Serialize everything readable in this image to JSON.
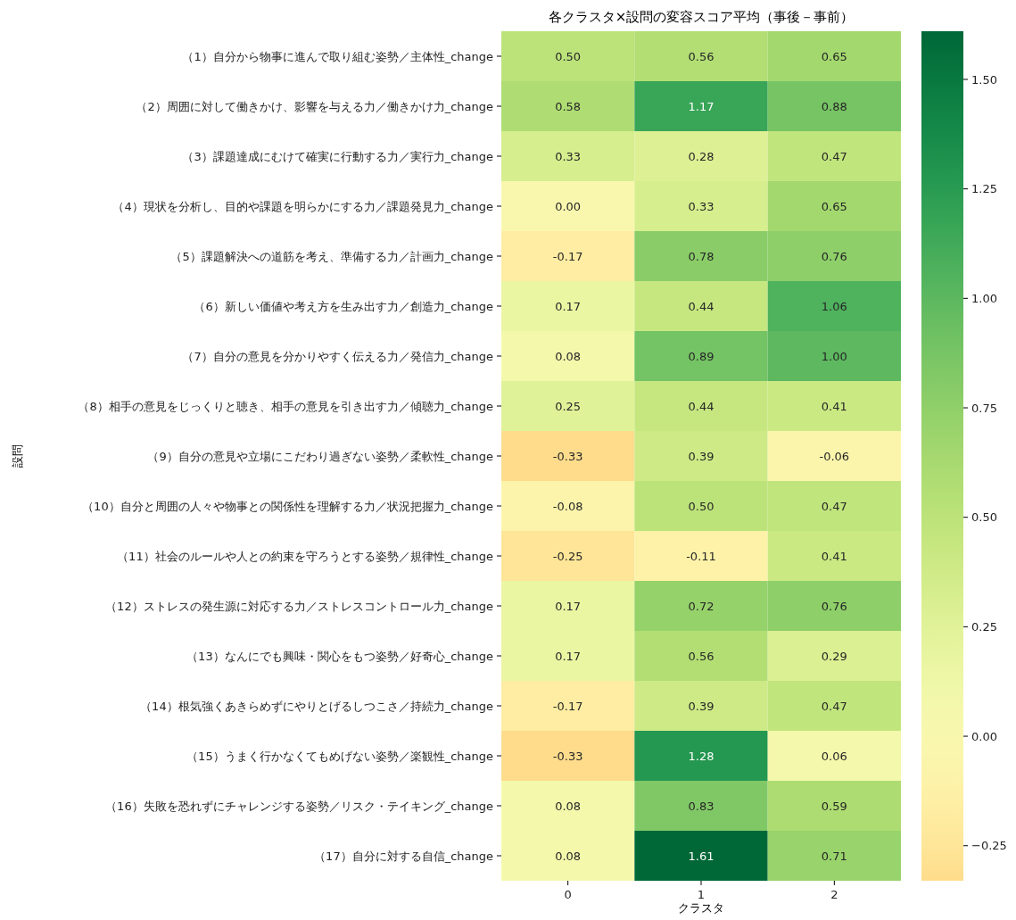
{
  "chart_data": {
    "type": "heatmap",
    "title": "各クラスタ×設問の変容スコア平均（事後－事前）",
    "xlabel": "クラスタ",
    "ylabel": "設問",
    "categories": [
      "0",
      "1",
      "2"
    ],
    "y_categories": [
      "（1）自分から物事に進んで取り組む姿勢／主体性_change",
      "（2）周囲に対して働きかけ、影響を与える力／働きかけ力_change",
      "（3）課題達成にむけて確実に行動する力／実行力_change",
      "（4）現状を分析し、目的や課題を明らかにする力／課題発見力_change",
      "（5）課題解決への道筋を考え、準備する力／計画力_change",
      "（6）新しい価値や考え方を生み出す力／創造力_change",
      "（7）自分の意見を分かりやすく伝える力／発信力_change",
      "（8）相手の意見をじっくりと聴き、相手の意見を引き出す力／傾聴力_change",
      "（9）自分の意見や立場にこだわり過ぎない姿勢／柔軟性_change",
      "（10）自分と周囲の人々や物事との関係性を理解する力／状況把握力_change",
      "（11）社会のルールや人との約束を守ろうとする姿勢／規律性_change",
      "（12）ストレスの発生源に対応する力／ストレスコントロール力_change",
      "（13）なんにでも興味・関心をもつ姿勢／好奇心_change",
      "（14）根気強くあきらめずにやりとげるしつこさ／持続力_change",
      "（15）うまく行かなくてもめげない姿勢／楽観性_change",
      "（16）失敗を恐れずにチャレンジする姿勢／リスク・テイキング_change",
      "（17）自分に対する自信_change"
    ],
    "cells": [
      [
        0.5,
        0.56,
        0.65
      ],
      [
        0.58,
        1.17,
        0.88
      ],
      [
        0.33,
        0.28,
        0.47
      ],
      [
        0.0,
        0.33,
        0.65
      ],
      [
        -0.17,
        0.78,
        0.76
      ],
      [
        0.17,
        0.44,
        1.06
      ],
      [
        0.08,
        0.89,
        1.0
      ],
      [
        0.25,
        0.44,
        0.41
      ],
      [
        -0.33,
        0.39,
        -0.06
      ],
      [
        -0.08,
        0.5,
        0.47
      ],
      [
        -0.25,
        -0.11,
        0.41
      ],
      [
        0.17,
        0.72,
        0.76
      ],
      [
        0.17,
        0.56,
        0.29
      ],
      [
        -0.17,
        0.39,
        0.47
      ],
      [
        -0.33,
        1.28,
        0.06
      ],
      [
        0.08,
        0.83,
        0.59
      ],
      [
        0.08,
        1.61,
        0.71
      ]
    ],
    "cell_labels": [
      [
        "0.50",
        "0.56",
        "0.65"
      ],
      [
        "0.58",
        "1.17",
        "0.88"
      ],
      [
        "0.33",
        "0.28",
        "0.47"
      ],
      [
        "0.00",
        "0.33",
        "0.65"
      ],
      [
        "-0.17",
        "0.78",
        "0.76"
      ],
      [
        "0.17",
        "0.44",
        "1.06"
      ],
      [
        "0.08",
        "0.89",
        "1.00"
      ],
      [
        "0.25",
        "0.44",
        "0.41"
      ],
      [
        "-0.33",
        "0.39",
        "-0.06"
      ],
      [
        "-0.08",
        "0.50",
        "0.47"
      ],
      [
        "-0.25",
        "-0.11",
        "0.41"
      ],
      [
        "0.17",
        "0.72",
        "0.76"
      ],
      [
        "0.17",
        "0.56",
        "0.29"
      ],
      [
        "-0.17",
        "0.39",
        "0.47"
      ],
      [
        "-0.33",
        "1.28",
        "0.06"
      ],
      [
        "0.08",
        "0.83",
        "0.59"
      ],
      [
        "0.08",
        "1.61",
        "0.71"
      ]
    ],
    "clim": [
      -0.33,
      1.61
    ],
    "cticks": [
      {
        "value": -0.25,
        "label": "−0.25"
      },
      {
        "value": 0,
        "label": "0.00"
      },
      {
        "value": 0.25,
        "label": "0.25"
      },
      {
        "value": 0.5,
        "label": "0.50"
      },
      {
        "value": 0.75,
        "label": "0.75"
      },
      {
        "value": 1,
        "label": "1.00"
      },
      {
        "value": 1.25,
        "label": "1.25"
      },
      {
        "value": 1.5,
        "label": "1.50"
      }
    ]
  }
}
